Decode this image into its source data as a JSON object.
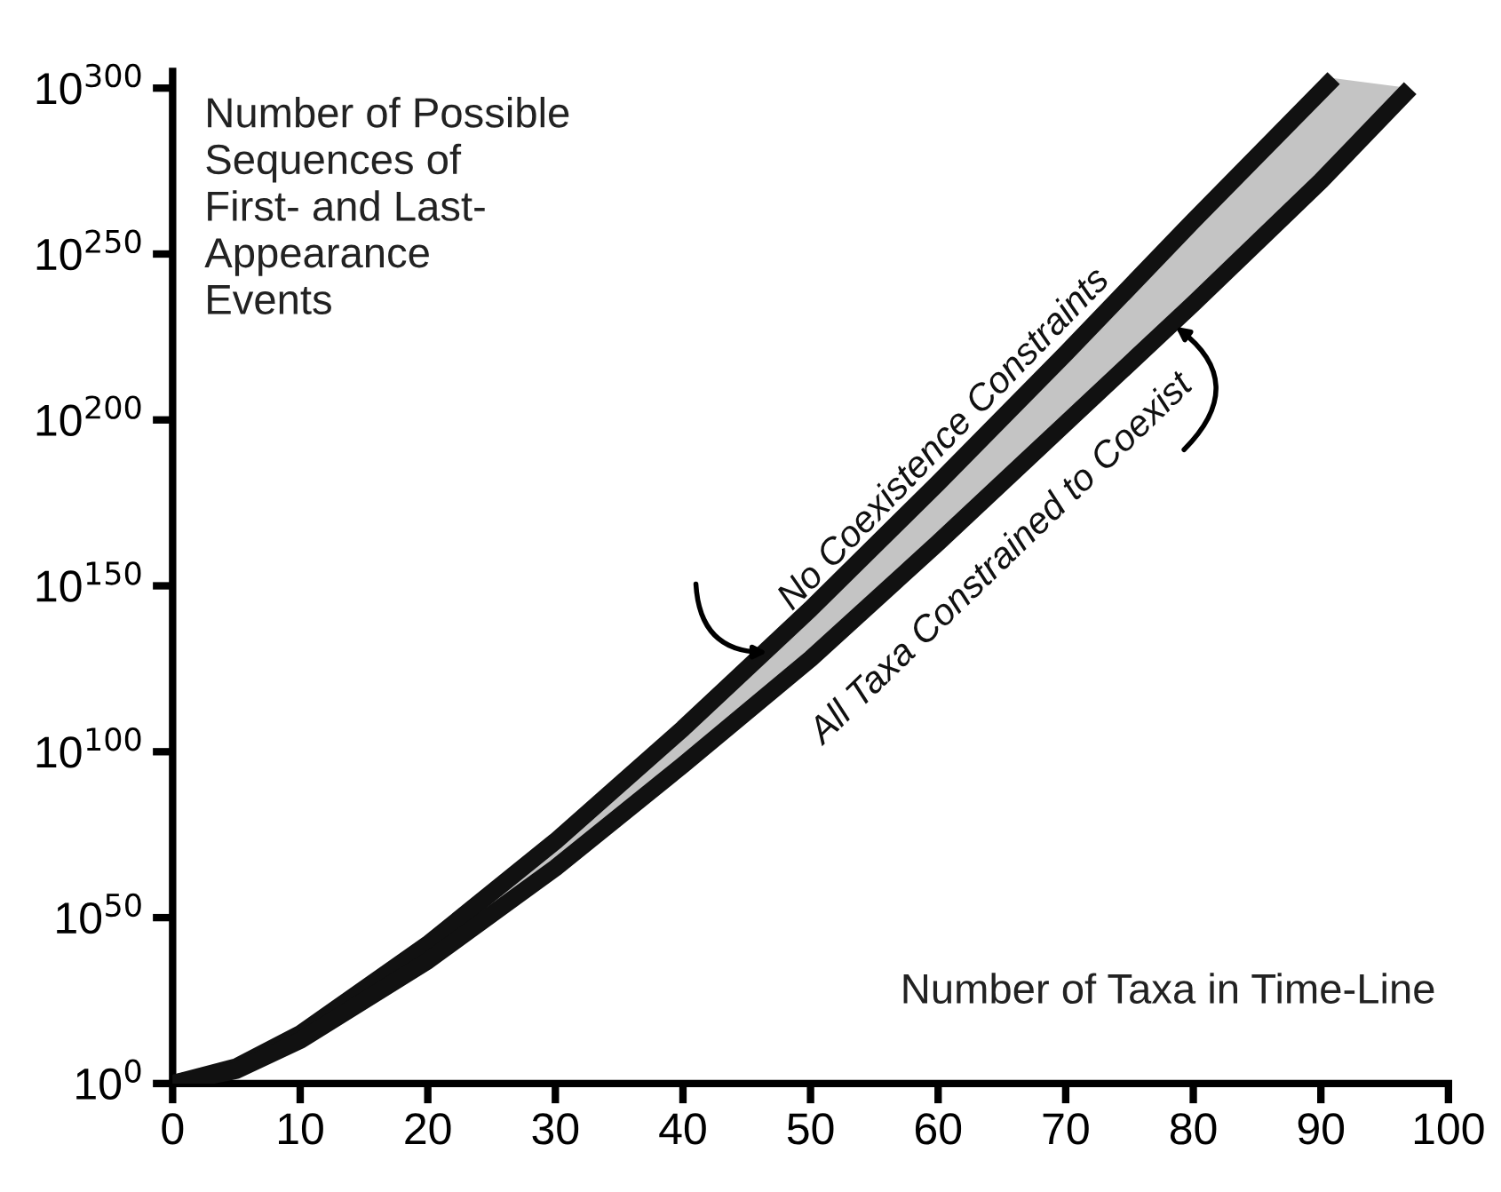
{
  "chart_data": {
    "type": "line",
    "ylabel": "Number of Possible\nSequences of\nFirst- and Last-\nAppearance\nEvents",
    "xlabel": "Number of Taxa in Time-Line",
    "log": "y",
    "grid": false,
    "legend": false,
    "marker": "none",
    "line_style": "solid",
    "xlim": [
      0,
      100
    ],
    "xticks": [
      0,
      10,
      20,
      30,
      40,
      50,
      60,
      70,
      80,
      90,
      100
    ],
    "ylim": [
      1,
      1e+305
    ],
    "yticks": [
      {
        "value": 1,
        "label": "10$^{0}$"
      },
      {
        "value": 1e+50,
        "label": "10$^{50}$"
      },
      {
        "value": 1e+100,
        "label": "10$^{100}$"
      },
      {
        "value": 1e+150,
        "label": "10$^{150}$"
      },
      {
        "value": 1e+200,
        "label": "10$^{200}$"
      },
      {
        "value": 1e+250,
        "label": "10$^{250}$"
      },
      {
        "value": 1e+300,
        "label": "10$^{300}$"
      }
    ],
    "series": [
      {
        "name": "No Coexistence Constraints",
        "color": "#111111",
        "x": [
          0,
          5,
          10,
          20,
          30,
          40,
          50,
          60,
          70,
          80,
          91
        ],
        "values": [
          1,
          100000.0,
          1000000000000000.0,
          1e+42,
          1e+73,
          1e+107,
          1e+143,
          1e+181,
          1e+220,
          1e+260,
          1e+303
        ]
      },
      {
        "name": "All Taxa Constrained to Coexist",
        "color": "#111111",
        "x": [
          0,
          5,
          10,
          20,
          30,
          40,
          50,
          60,
          70,
          80,
          90,
          97
        ],
        "values": [
          1,
          10000.0,
          10000000000000.0,
          1e+37,
          1e+65,
          1e+96,
          1e+128,
          1e+163,
          1e+199,
          1e+235,
          1e+272,
          1e+300
        ]
      }
    ]
  }
}
